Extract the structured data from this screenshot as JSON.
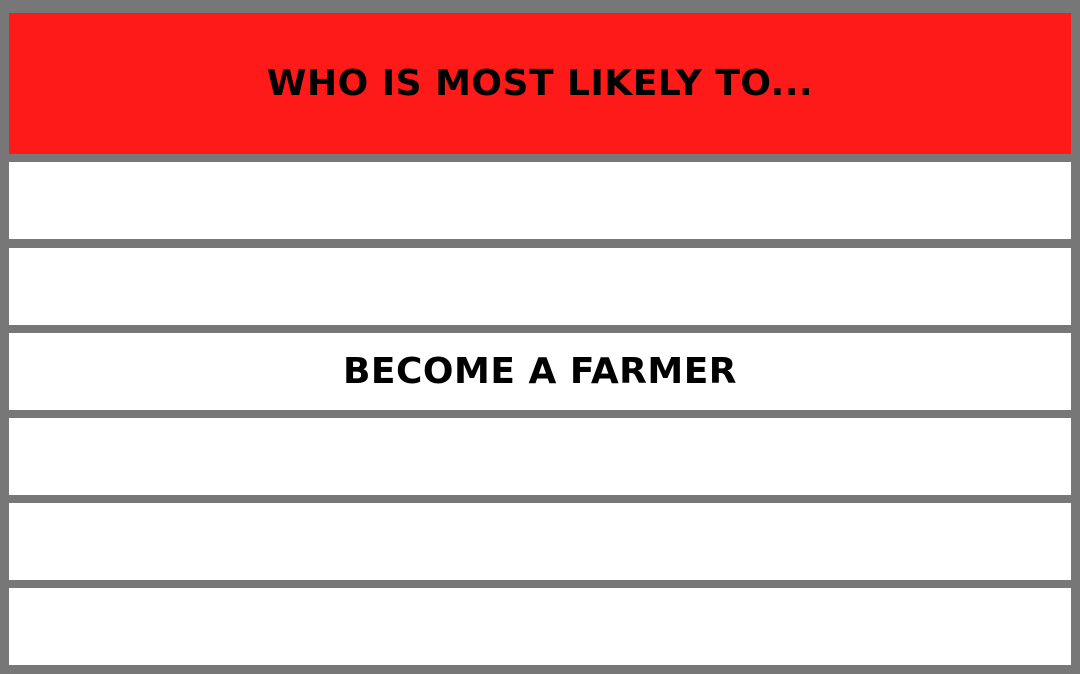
{
  "header": {
    "title": "WHO IS MOST LIKELY TO..."
  },
  "rows": [
    "",
    "",
    "BECOME A FARMER",
    "",
    "",
    ""
  ],
  "colors": {
    "header_bg": "#ff1a1a",
    "border": "#777777",
    "row_bg": "#ffffff",
    "text": "#000000"
  }
}
